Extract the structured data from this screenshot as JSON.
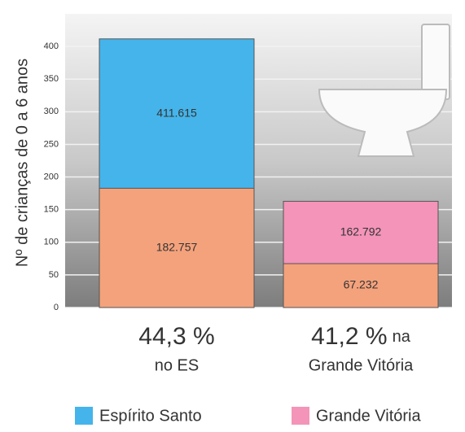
{
  "chart_data": {
    "type": "bar",
    "ylabel": "Nº de crianças de 0 a 6 anos",
    "ylim": [
      0,
      450
    ],
    "yticks": [
      0,
      50,
      100,
      150,
      200,
      250,
      300,
      350,
      400
    ],
    "grid": true,
    "totals": {
      "values": [
        411.615,
        162.792
      ]
    },
    "subset": {
      "values": [
        182.757,
        67.232
      ],
      "color": "#f4a27c"
    },
    "bar_labels": [
      {
        "percent": "44,3 %",
        "text": "no ES"
      },
      {
        "percent": "41,2 %",
        "suffix": "na",
        "text": "Grande Vitória"
      }
    ],
    "legend": [
      {
        "name": "Espírito Santo",
        "color": "#45b4ea"
      },
      {
        "name": "Grande Vitória",
        "color": "#f394b8"
      }
    ]
  }
}
